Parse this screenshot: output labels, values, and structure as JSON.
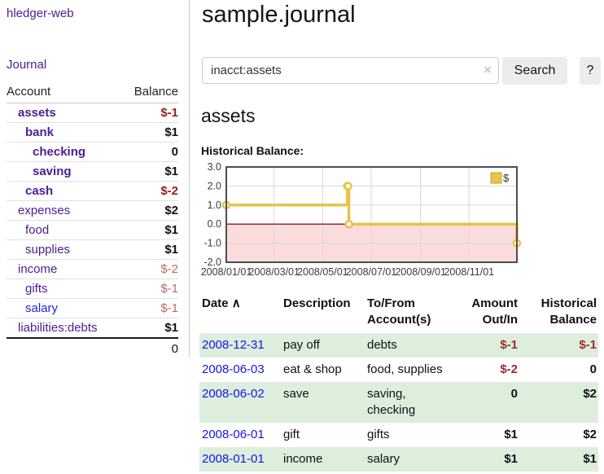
{
  "app": {
    "brand": "hledger-web",
    "nav_journal": "Journal"
  },
  "colors": {
    "purple_link": "#4a2096",
    "blue_link": "#2222e0",
    "date_link": "#1414e8",
    "negative_dark": "#9c1d1d",
    "negative_light": "#c06868",
    "register_negative": "#9e2b2b",
    "row_green": "#ddeedd",
    "chart_line": "#e9c24a",
    "chart_negative_region": "#fbdcdc",
    "chart_zero_line": "#8b1a1a"
  },
  "sidebar": {
    "headers": {
      "account": "Account",
      "balance": "Balance"
    },
    "accounts": [
      {
        "name": "assets",
        "balance": "$-1",
        "indent": 1,
        "bold": true,
        "negative": true,
        "unvisited": false
      },
      {
        "name": "bank",
        "balance": "$1",
        "indent": 2,
        "bold": true,
        "negative": false,
        "unvisited": false
      },
      {
        "name": "checking",
        "balance": "0",
        "indent": 3,
        "bold": true,
        "negative": false,
        "unvisited": false
      },
      {
        "name": "saving",
        "balance": "$1",
        "indent": 3,
        "bold": true,
        "negative": false,
        "unvisited": false
      },
      {
        "name": "cash",
        "balance": "$-2",
        "indent": 2,
        "bold": true,
        "negative": true,
        "unvisited": false
      },
      {
        "name": "expenses",
        "balance": "$2",
        "indent": 1,
        "bold": false,
        "negative": false,
        "unvisited": false
      },
      {
        "name": "food",
        "balance": "$1",
        "indent": 2,
        "bold": false,
        "negative": false,
        "unvisited": false
      },
      {
        "name": "supplies",
        "balance": "$1",
        "indent": 2,
        "bold": false,
        "negative": false,
        "unvisited": false
      },
      {
        "name": "income",
        "balance": "$-2",
        "indent": 1,
        "bold": false,
        "negative": true,
        "unvisited": false
      },
      {
        "name": "gifts",
        "balance": "$-1",
        "indent": 2,
        "bold": false,
        "negative": true,
        "unvisited": false
      },
      {
        "name": "salary",
        "balance": "$-1",
        "indent": 2,
        "bold": false,
        "negative": true,
        "unvisited": true
      },
      {
        "name": "liabilities:debts",
        "balance": "$1",
        "indent": 1,
        "bold": false,
        "negative": false,
        "unvisited": false
      }
    ],
    "total": "0"
  },
  "header": {
    "title": "sample.journal"
  },
  "search": {
    "value": "inacct:assets",
    "clear_label": "×",
    "search_button": "Search",
    "help_button": "?"
  },
  "account_page": {
    "heading": "assets",
    "chart_label": "Historical Balance:"
  },
  "chart_data": {
    "type": "line",
    "step": true,
    "title": "Historical Balance:",
    "series": [
      {
        "name": "$",
        "x": [
          "2008-01-01",
          "2008-06-01",
          "2008-06-02",
          "2008-06-03",
          "2008-12-31"
        ],
        "values": [
          1,
          2,
          2,
          0,
          -1
        ]
      }
    ],
    "x_range": [
      "2008-01-01",
      "2008-12-31"
    ],
    "x_tick_labels": [
      "2008/01/01",
      "2008/03/01",
      "2008/05/01",
      "2008/07/01",
      "2008/09/01",
      "2008/11/01"
    ],
    "y_ticks": [
      3.0,
      2.0,
      1.0,
      0.0,
      -1.0,
      -2.0
    ],
    "ylim": [
      -2,
      3
    ],
    "grid": true,
    "legend": {
      "label": "$",
      "position": "top-right"
    },
    "negative_region_shaded": true
  },
  "register": {
    "headers": [
      "Date",
      "Description",
      "To/From Account(s)",
      "Amount Out/In",
      "Historical Balance"
    ],
    "sort_icon": "∧",
    "rows": [
      {
        "date": "2008-12-31",
        "description": "pay off",
        "accounts": "debts",
        "amount": "$-1",
        "balance": "$-1",
        "amount_negative": true,
        "balance_negative": true
      },
      {
        "date": "2008-06-03",
        "description": "eat & shop",
        "accounts": "food, supplies",
        "amount": "$-2",
        "balance": "0",
        "amount_negative": true,
        "balance_negative": false
      },
      {
        "date": "2008-06-02",
        "description": "save",
        "accounts": "saving, checking",
        "amount": "0",
        "balance": "$2",
        "amount_negative": false,
        "balance_negative": false
      },
      {
        "date": "2008-06-01",
        "description": "gift",
        "accounts": "gifts",
        "amount": "$1",
        "balance": "$2",
        "amount_negative": false,
        "balance_negative": false
      },
      {
        "date": "2008-01-01",
        "description": "income",
        "accounts": "salary",
        "amount": "$1",
        "balance": "$1",
        "amount_negative": false,
        "balance_negative": false
      }
    ]
  }
}
